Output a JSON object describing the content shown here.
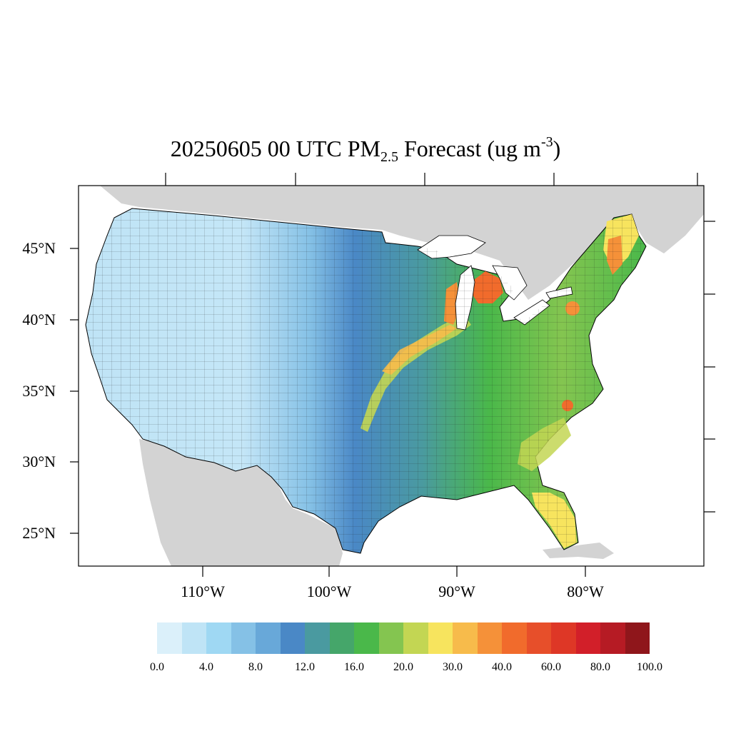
{
  "title": {
    "date_time": "20250605 00 UTC PM",
    "subscript": "2.5",
    "rest": " Forecast (ug m",
    "superscript": "-3",
    "close": ")"
  },
  "map": {
    "region": "Contiguous United States",
    "variable": "PM2.5 forecast by county",
    "background_color": "#d3d3d3",
    "water_color": "#ffffff",
    "border_color": "#000000"
  },
  "axes": {
    "latitude_labels": [
      "45°N",
      "40°N",
      "35°N",
      "30°N",
      "25°N"
    ],
    "longitude_labels": [
      "110°W",
      "100°W",
      "90°W",
      "80°W"
    ]
  },
  "colorbar": {
    "colors": [
      "#dbf0fa",
      "#bfe4f6",
      "#9fd8f3",
      "#85c1e6",
      "#68a8d9",
      "#4a88c6",
      "#4a9aa0",
      "#45a66a",
      "#4ab84a",
      "#84c550",
      "#c3d653",
      "#f7e45e",
      "#f7bb4b",
      "#f59139",
      "#f16b2c",
      "#e74f2a",
      "#de3726",
      "#d21f29",
      "#b61b24",
      "#8f161b"
    ],
    "tick_labels": [
      "0.0",
      "4.0",
      "8.0",
      "12.0",
      "16.0",
      "20.0",
      "30.0",
      "40.0",
      "60.0",
      "80.0",
      "100.0"
    ]
  }
}
